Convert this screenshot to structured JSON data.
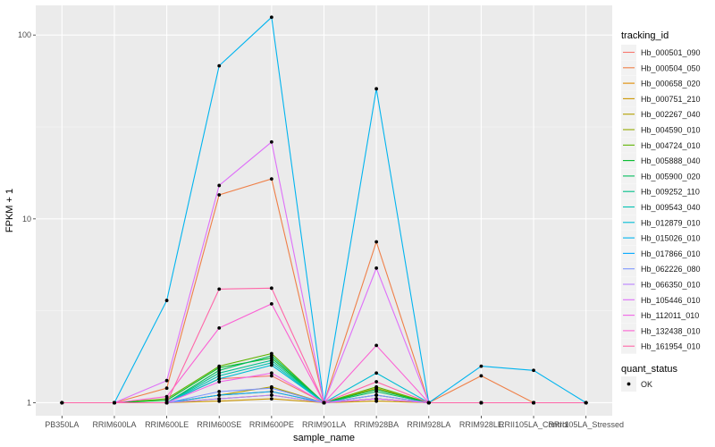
{
  "chart_data": {
    "type": "line",
    "xlabel": "sample_name",
    "ylabel": "FPKM + 1",
    "y_scale": "log10",
    "ylim": [
      0.85,
      145
    ],
    "y_ticks": [
      {
        "value": 1,
        "label": "1"
      },
      {
        "value": 10,
        "label": "10"
      },
      {
        "value": 100,
        "label": "100"
      }
    ],
    "grid": true,
    "legend_position": "right",
    "categories": [
      "PB350LA",
      "RRIM600LA",
      "RRIM600LE",
      "RRIM600SE",
      "RRIM600PE",
      "RRIM901LA",
      "RRIM928BA",
      "RRIM928LA",
      "RRIM928LE",
      "RRII105LA_Control",
      "RRII105LA_Stressed"
    ],
    "series_legend_title": "tracking_id",
    "series": [
      {
        "name": "Hb_000501_090",
        "color": "#F8766D",
        "values": [
          1,
          1,
          1.0,
          1.35,
          1.4,
          1,
          1.1,
          1,
          1,
          1,
          1
        ]
      },
      {
        "name": "Hb_000504_050",
        "color": "#EF7F47",
        "values": [
          1,
          1,
          1.2,
          13.5,
          16.5,
          1,
          7.5,
          1,
          1.4,
          1,
          1
        ]
      },
      {
        "name": "Hb_000658_020",
        "color": "#E08B00",
        "values": [
          1,
          1,
          1.0,
          1.1,
          1.15,
          1,
          1.05,
          1,
          1,
          1,
          1
        ]
      },
      {
        "name": "Hb_000751_210",
        "color": "#CC9600",
        "values": [
          1,
          1,
          1.0,
          1.02,
          1.05,
          1,
          1.02,
          1,
          1,
          1,
          1
        ]
      },
      {
        "name": "Hb_002267_040",
        "color": "#B2A000",
        "values": [
          1,
          1,
          1.0,
          1.1,
          1.22,
          1,
          1.2,
          1,
          1,
          1,
          1
        ]
      },
      {
        "name": "Hb_004590_010",
        "color": "#93AA00",
        "values": [
          1,
          1,
          1.0,
          1.05,
          1.1,
          1,
          1.05,
          1,
          1,
          1,
          1
        ]
      },
      {
        "name": "Hb_004724_010",
        "color": "#5EB300",
        "values": [
          1,
          1,
          1.05,
          1.58,
          1.85,
          1,
          1.22,
          1,
          1,
          1,
          1
        ]
      },
      {
        "name": "Hb_005888_040",
        "color": "#00B929",
        "values": [
          1,
          1,
          1.03,
          1.55,
          1.75,
          1,
          1.18,
          1,
          1,
          1,
          1
        ]
      },
      {
        "name": "Hb_005900_020",
        "color": "#00BD5C",
        "values": [
          1,
          1,
          1.0,
          1.5,
          1.8,
          1,
          1.15,
          1,
          1,
          1,
          1
        ]
      },
      {
        "name": "Hb_009252_110",
        "color": "#00C08B",
        "values": [
          1,
          1,
          1.0,
          1.45,
          1.7,
          1,
          1.1,
          1,
          1,
          1,
          1
        ]
      },
      {
        "name": "Hb_009543_040",
        "color": "#00C0B2",
        "values": [
          1,
          1,
          1.0,
          1.4,
          1.65,
          1,
          1.05,
          1,
          1,
          1,
          1
        ]
      },
      {
        "name": "Hb_012879_010",
        "color": "#00BCD4",
        "values": [
          1,
          1,
          1.0,
          1.35,
          1.6,
          1,
          1.45,
          1,
          1,
          1,
          1
        ]
      },
      {
        "name": "Hb_015026_010",
        "color": "#00B4EF",
        "values": [
          1,
          1,
          3.6,
          68,
          125,
          1,
          51,
          1,
          1.58,
          1.5,
          1
        ]
      },
      {
        "name": "Hb_017866_010",
        "color": "#00A8FF",
        "values": [
          1,
          1,
          1.0,
          1.1,
          1.15,
          1,
          1.05,
          1,
          1,
          1,
          1
        ]
      },
      {
        "name": "Hb_062226_080",
        "color": "#7F96FF",
        "values": [
          1,
          1,
          1.0,
          1.15,
          1.2,
          1,
          1.1,
          1,
          1,
          1,
          1
        ]
      },
      {
        "name": "Hb_066350_010",
        "color": "#BA81FF",
        "values": [
          1,
          1,
          1.0,
          1.05,
          1.1,
          1,
          1.05,
          1,
          1,
          1,
          1
        ]
      },
      {
        "name": "Hb_105446_010",
        "color": "#DE6FF9",
        "values": [
          1,
          1,
          1.32,
          15.2,
          26.2,
          1,
          5.4,
          1,
          1,
          1,
          1
        ]
      },
      {
        "name": "Hb_112011_010",
        "color": "#F166E8",
        "values": [
          1,
          1,
          1.0,
          1.3,
          1.45,
          1,
          1.05,
          1,
          1,
          1,
          1
        ]
      },
      {
        "name": "Hb_132438_010",
        "color": "#FB61D4",
        "values": [
          1,
          1,
          1.08,
          2.55,
          3.45,
          1,
          2.05,
          1,
          1,
          1,
          1
        ]
      },
      {
        "name": "Hb_161954_010",
        "color": "#FF66A8",
        "values": [
          1,
          1,
          1.0,
          4.15,
          4.2,
          1,
          1.3,
          1,
          1,
          1,
          1
        ]
      }
    ],
    "shape_legend_title": "quant_status",
    "shape_legend_items": [
      {
        "label": "OK",
        "shape": "circle"
      }
    ]
  }
}
